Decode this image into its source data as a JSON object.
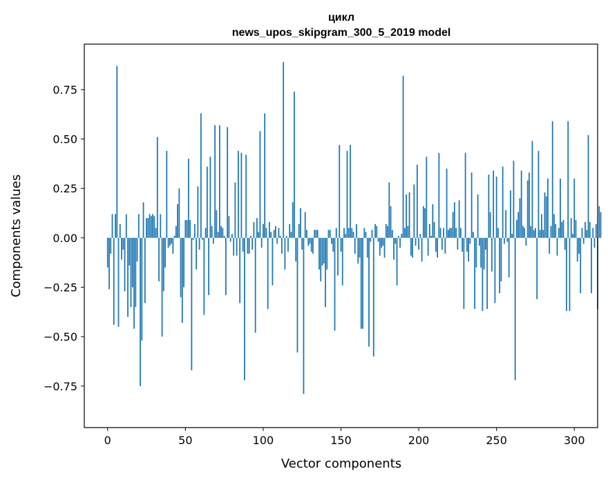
{
  "chart_data": {
    "type": "bar",
    "title_line1": "цикл",
    "title_line2": "news_upos_skipgram_300_5_2019 model",
    "xlabel": "Vector components",
    "ylabel": "Components values",
    "xlim": [
      -15,
      315
    ],
    "ylim": [
      -0.96,
      0.98
    ],
    "xticks": [
      0,
      50,
      100,
      150,
      200,
      250,
      300
    ],
    "xtick_labels": [
      "0",
      "50",
      "100",
      "150",
      "200",
      "250",
      "300"
    ],
    "yticks": [
      -0.75,
      -0.5,
      -0.25,
      0.0,
      0.25,
      0.5,
      0.75
    ],
    "ytick_labels": [
      "−0.75",
      "−0.50",
      "−0.25",
      "0.00",
      "0.25",
      "0.50",
      "0.75"
    ],
    "bar_color": "#1f77b4",
    "values": [
      -0.15,
      -0.26,
      -0.08,
      0.12,
      -0.44,
      0.12,
      0.87,
      -0.45,
      0.07,
      -0.11,
      -0.06,
      -0.27,
      0.12,
      -0.4,
      -0.14,
      -0.35,
      -0.25,
      -0.46,
      -0.35,
      -0.12,
      0.12,
      -0.75,
      -0.52,
      0.18,
      -0.33,
      0.1,
      0.1,
      0.12,
      0.11,
      0.12,
      0.11,
      0.05,
      0.51,
      -0.22,
      0.12,
      -0.5,
      -0.27,
      -0.15,
      0.44,
      -0.05,
      -0.04,
      -0.03,
      -0.08,
      0.01,
      0.06,
      0.17,
      0.25,
      -0.3,
      -0.43,
      -0.25,
      0.09,
      0.09,
      0.4,
      0.09,
      -0.67,
      -0.01,
      0.07,
      -0.16,
      0.26,
      -0.06,
      0.63,
      -0.01,
      -0.39,
      0.05,
      0.36,
      -0.29,
      0.41,
      0.06,
      -0.03,
      0.57,
      0.14,
      0.03,
      0.57,
      0.06,
      0.05,
      0.01,
      -0.29,
      0.56,
      0.11,
      -0.02,
      0.02,
      -0.09,
      0.28,
      -0.09,
      0.44,
      -0.33,
      0.43,
      -0.07,
      -0.72,
      0.42,
      -0.08,
      -0.08,
      0.01,
      -0.06,
      0.08,
      -0.48,
      0.1,
      0.03,
      0.54,
      -0.05,
      0.07,
      0.63,
      0.05,
      -0.36,
      0.08,
      0.03,
      -0.24,
      0.04,
      0.06,
      -0.03,
      0.05,
      0.01,
      -0.08,
      0.89,
      -0.16,
      0.01,
      -0.07,
      0.07,
      0.03,
      0.18,
      0.74,
      -0.12,
      -0.58,
      0.07,
      0.15,
      -0.06,
      -0.79,
      0.13,
      0.04,
      -0.04,
      -0.03,
      -0.07,
      -0.08,
      0.04,
      0.04,
      0.04,
      -0.16,
      -0.22,
      -0.14,
      -0.13,
      -0.35,
      -0.16,
      0.04,
      0.04,
      -0.03,
      -0.07,
      -0.47,
      0.05,
      -0.19,
      0.47,
      -0.07,
      -0.24,
      0.05,
      0.02,
      0.44,
      0.05,
      0.47,
      0.05,
      0.03,
      -0.08,
      0.07,
      -0.13,
      -0.1,
      -0.46,
      -0.46,
      0.05,
      0.03,
      -0.1,
      -0.55,
      -0.02,
      0.04,
      -0.6,
      0.07,
      0.06,
      -0.02,
      -0.09,
      -0.05,
      -0.04,
      -0.1,
      0.07,
      0.06,
      0.28,
      0.16,
      0.04,
      -0.11,
      -0.03,
      -0.24,
      0.01,
      -0.05,
      0.02,
      0.82,
      0.05,
      0.22,
      0.06,
      0.23,
      -0.09,
      -0.1,
      0.27,
      -0.04,
      0.37,
      -0.06,
      0.02,
      -0.12,
      0.16,
      0.15,
      0.41,
      -0.09,
      0.07,
      0.01,
      0.17,
      0.08,
      -0.07,
      -0.1,
      0.43,
      0.05,
      -0.06,
      0.05,
      -0.08,
      0.35,
      0.04,
      0.05,
      0.05,
      0.13,
      0.18,
      0.05,
      -0.06,
      0.19,
      0.05,
      -0.07,
      -0.36,
      0.43,
      -0.07,
      -0.12,
      -0.03,
      0.33,
      0.03,
      -0.36,
      -0.15,
      0.22,
      -0.04,
      -0.15,
      -0.37,
      -0.16,
      -0.06,
      -0.36,
      0.32,
      0.13,
      -0.17,
      0.34,
      -0.33,
      0.31,
      0.05,
      -0.28,
      -0.22,
      0.36,
      -0.03,
      0.14,
      -0.02,
      -0.2,
      0.24,
      0.02,
      0.39,
      -0.72,
      0.09,
      0.13,
      0.2,
      0.34,
      0.06,
      0.05,
      -0.04,
      0.29,
      0.33,
      0.06,
      0.49,
      0.04,
      0.05,
      -0.31,
      0.44,
      0.04,
      0.12,
      0.04,
      0.23,
      0.21,
      0.3,
      -0.08,
      0.06,
      0.59,
      0.12,
      0.07,
      -0.09,
      0.05,
      0.3,
      0.08,
      0.09,
      -0.06,
      -0.37,
      0.59,
      -0.37,
      0.1,
      0.02,
      0.3,
      0.09,
      -0.12,
      -0.08,
      -0.28,
      0.05,
      -0.03,
      0.08,
      0.04,
      0.52,
      0.08,
      -0.28,
      0.05,
      -0.05,
      0.07,
      -0.36,
      0.16,
      0.13
    ]
  }
}
